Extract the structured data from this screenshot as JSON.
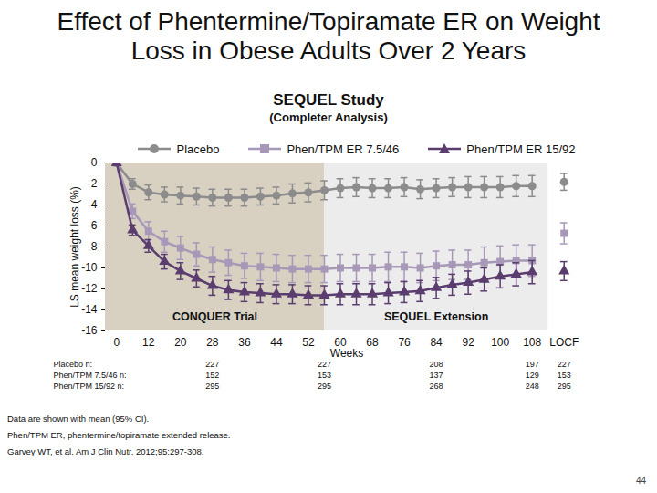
{
  "chart_data": {
    "type": "line",
    "title": "Effect of Phentermine/Topiramate ER on Weight Loss in Obese Adults Over 2 Years",
    "subtitle": [
      "SEQUEL Study",
      "(Completer Analysis)"
    ],
    "x_label": "Weeks",
    "y_label": "LS mean weight loss (%)",
    "categories": [
      "0",
      null,
      "12",
      null,
      "20",
      null,
      "28",
      null,
      "36",
      null,
      "44",
      null,
      "52",
      null,
      "60",
      null,
      "68",
      null,
      "76",
      null,
      "84",
      null,
      "92",
      null,
      "100",
      null,
      "108",
      null,
      "LOCF"
    ],
    "ylim": [
      -16,
      0
    ],
    "yticks": [
      0,
      -2,
      -4,
      -6,
      -8,
      -10,
      -12,
      -14,
      -16
    ],
    "grid": false,
    "legend": "top",
    "series": [
      {
        "name": "Placebo",
        "color": "#8c8c8c",
        "marker": "circle",
        "values": [
          0,
          -2.0,
          -2.8,
          -3.0,
          -3.1,
          -3.2,
          -3.3,
          -3.3,
          -3.3,
          -3.2,
          -3.1,
          -2.9,
          -2.8,
          -2.6,
          -2.4,
          -2.3,
          -2.4,
          -2.4,
          -2.3,
          -2.5,
          -2.4,
          -2.3,
          -2.3,
          -2.3,
          -2.3,
          -2.2,
          -2.2,
          null,
          -1.8
        ],
        "error": [
          0,
          0.5,
          0.7,
          0.7,
          0.8,
          0.8,
          0.8,
          0.8,
          0.8,
          0.8,
          0.8,
          0.9,
          0.9,
          0.9,
          0.9,
          0.9,
          0.9,
          0.9,
          0.9,
          0.9,
          0.9,
          0.9,
          1.0,
          1.0,
          1.0,
          1.0,
          1.0,
          null,
          0.8
        ]
      },
      {
        "name": "Phen/TPM ER 7.5/46",
        "color": "#a898b8",
        "marker": "square",
        "values": [
          0,
          -4.6,
          -6.5,
          -7.5,
          -8.1,
          -8.7,
          -9.2,
          -9.5,
          -9.8,
          -9.9,
          -10.0,
          -10.1,
          -10.1,
          -10.1,
          -10.0,
          -10.0,
          -10.0,
          -9.9,
          -9.9,
          -10.0,
          -9.8,
          -9.7,
          -9.7,
          -9.5,
          -9.4,
          -9.3,
          -9.3,
          null,
          -6.7
        ],
        "error": [
          0,
          0.7,
          0.9,
          1.0,
          1.1,
          1.1,
          1.2,
          1.2,
          1.2,
          1.3,
          1.3,
          1.3,
          1.3,
          1.3,
          1.3,
          1.3,
          1.3,
          1.4,
          1.4,
          1.4,
          1.4,
          1.4,
          1.4,
          1.5,
          1.5,
          1.5,
          1.5,
          null,
          1.0
        ]
      },
      {
        "name": "Phen/TPM ER 15/92",
        "color": "#5a3d6e",
        "marker": "triangle",
        "values": [
          0,
          -6.4,
          -7.9,
          -9.4,
          -10.3,
          -11.0,
          -11.7,
          -12.1,
          -12.3,
          -12.4,
          -12.5,
          -12.5,
          -12.6,
          -12.6,
          -12.5,
          -12.5,
          -12.5,
          -12.4,
          -12.3,
          -12.2,
          -11.9,
          -11.6,
          -11.4,
          -11.1,
          -10.8,
          -10.6,
          -10.4,
          null,
          -10.3
        ],
        "error": [
          0,
          0.5,
          0.6,
          0.7,
          0.8,
          0.8,
          0.9,
          0.9,
          0.9,
          0.9,
          0.9,
          0.9,
          0.9,
          0.9,
          1.0,
          1.0,
          1.0,
          1.0,
          1.0,
          1.0,
          1.0,
          1.0,
          1.1,
          1.1,
          1.1,
          1.1,
          1.1,
          null,
          0.9
        ]
      }
    ],
    "periods": [
      {
        "label": "CONQUER Trial",
        "end": 13,
        "color": "#d8d1c2"
      },
      {
        "label": "SEQUEL Extension",
        "end": 27,
        "color": "#ececec"
      }
    ],
    "n_table": {
      "labels": [
        "Placebo n:",
        "Phen/TPM 7.5/46 n:",
        "Phen/TPM 15/92 n:"
      ],
      "positions": [
        6,
        13,
        20,
        26,
        28
      ],
      "counts": [
        [
          227,
          227,
          208,
          197,
          227
        ],
        [
          152,
          153,
          137,
          129,
          153
        ],
        [
          295,
          295,
          268,
          248,
          295
        ]
      ]
    },
    "notes": [
      "Data are shown with mean (95% CI).",
      "Phen/TPM ER, phentermine/topiramate extended release.",
      "Garvey WT, et al. Am J Clin Nutr. 2012;95:297-308."
    ],
    "page_number": 44
  }
}
